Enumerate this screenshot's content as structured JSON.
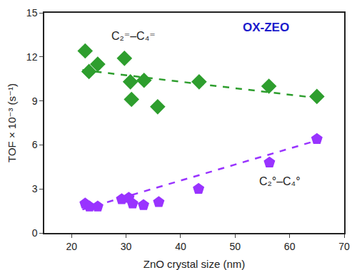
{
  "chart_data": {
    "type": "scatter",
    "x_label": "ZnO crystal size (nm)",
    "y_label": "TOF × 10⁻³ (s⁻¹)",
    "annotations": [
      "OX-ZEO"
    ],
    "xlim": [
      15,
      70
    ],
    "xticks": [
      20,
      30,
      40,
      50,
      60,
      70
    ],
    "ylim": [
      0,
      15
    ],
    "yticks": [
      0,
      3,
      6,
      9,
      12,
      15
    ],
    "grid": false,
    "series": [
      {
        "name": "C₂⁼–C₄⁼",
        "color": "#2e9e2e",
        "marker": "diamond",
        "x": [
          22.5,
          23.2,
          24.8,
          29.7,
          30.8,
          31.0,
          33.3,
          35.8,
          43.4,
          56.2,
          65.0
        ],
        "values": [
          12.4,
          11.0,
          11.5,
          11.9,
          10.3,
          9.1,
          10.4,
          8.6,
          10.3,
          10.0,
          9.3
        ],
        "trend": {
          "x": [
            22,
            65
          ],
          "values": [
            11.1,
            9.2
          ],
          "line_style": "dashed"
        }
      },
      {
        "name": "C₂°–C₄°",
        "color": "#9933ff",
        "marker": "pentagon",
        "x": [
          22.5,
          23.3,
          24.8,
          29.2,
          30.5,
          31.2,
          33.2,
          36.0,
          43.3,
          56.3,
          65.0
        ],
        "values": [
          2.0,
          1.8,
          1.8,
          2.3,
          2.4,
          2.0,
          1.9,
          2.1,
          3.0,
          4.8,
          6.4
        ],
        "trend": {
          "x": [
            22,
            65
          ],
          "values": [
            1.6,
            6.3
          ],
          "line_style": "dashed"
        }
      }
    ]
  }
}
